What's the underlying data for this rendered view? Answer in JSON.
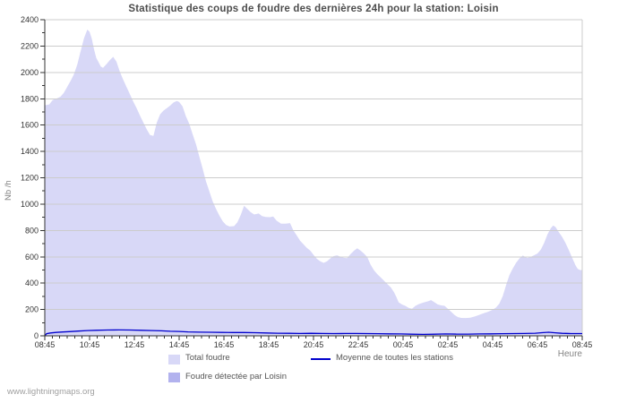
{
  "watermark": "www.lightningmaps.org",
  "colors": {
    "total_fill": "#d8d8f7",
    "loisin_fill": "#b2b2ee",
    "average_line": "#0000cc",
    "grid": "#cccccc",
    "axis": "#333333",
    "title_text": "#4d4d4d",
    "tick_label": "#333333",
    "axis_title_text": "#858585",
    "legend_text": "#555555",
    "watermark_text": "#a0a0a0"
  },
  "chart_data": {
    "type": "area",
    "title": "Statistique des coups de foudre des dernières 24h pour la station: Loisin",
    "xlabel": "Heure",
    "ylabel": "Nb /h",
    "ylim": [
      0,
      2400
    ],
    "y_tick_step": 200,
    "y_minor_step": 100,
    "x_range_hours": [
      0,
      24
    ],
    "x_major_step_hours": 2,
    "x_minor_step_hours": 0.3333,
    "x_tick_labels": [
      "08:45",
      "10:45",
      "12:45",
      "14:45",
      "16:45",
      "18:45",
      "20:45",
      "22:45",
      "00:45",
      "02:45",
      "04:45",
      "06:45",
      "08:45"
    ],
    "grid": "horizontal",
    "legend_position": "bottom",
    "series": [
      {
        "name": "Total foudre",
        "type": "area",
        "color": "#d8d8f7",
        "points": [
          [
            0,
            1750
          ],
          [
            0.2,
            1757
          ],
          [
            0.35,
            1790
          ],
          [
            0.55,
            1803
          ],
          [
            0.7,
            1815
          ],
          [
            0.85,
            1845
          ],
          [
            1.0,
            1890
          ],
          [
            1.15,
            1935
          ],
          [
            1.3,
            1985
          ],
          [
            1.45,
            2060
          ],
          [
            1.6,
            2160
          ],
          [
            1.75,
            2260
          ],
          [
            1.9,
            2325
          ],
          [
            2.0,
            2308
          ],
          [
            2.1,
            2255
          ],
          [
            2.2,
            2175
          ],
          [
            2.3,
            2110
          ],
          [
            2.4,
            2078
          ],
          [
            2.5,
            2045
          ],
          [
            2.6,
            2035
          ],
          [
            2.75,
            2062
          ],
          [
            2.9,
            2093
          ],
          [
            3.05,
            2118
          ],
          [
            3.2,
            2082
          ],
          [
            3.35,
            2005
          ],
          [
            3.5,
            1945
          ],
          [
            3.65,
            1888
          ],
          [
            3.8,
            1835
          ],
          [
            3.95,
            1778
          ],
          [
            4.1,
            1728
          ],
          [
            4.25,
            1672
          ],
          [
            4.4,
            1620
          ],
          [
            4.55,
            1568
          ],
          [
            4.7,
            1525
          ],
          [
            4.85,
            1518
          ],
          [
            5.0,
            1618
          ],
          [
            5.15,
            1682
          ],
          [
            5.3,
            1710
          ],
          [
            5.45,
            1728
          ],
          [
            5.6,
            1748
          ],
          [
            5.75,
            1772
          ],
          [
            5.9,
            1783
          ],
          [
            6.0,
            1775
          ],
          [
            6.15,
            1742
          ],
          [
            6.3,
            1668
          ],
          [
            6.45,
            1610
          ],
          [
            6.6,
            1532
          ],
          [
            6.75,
            1455
          ],
          [
            6.9,
            1362
          ],
          [
            7.05,
            1268
          ],
          [
            7.2,
            1172
          ],
          [
            7.35,
            1095
          ],
          [
            7.5,
            1020
          ],
          [
            7.65,
            962
          ],
          [
            7.8,
            912
          ],
          [
            7.95,
            868
          ],
          [
            8.1,
            842
          ],
          [
            8.25,
            830
          ],
          [
            8.45,
            833
          ],
          [
            8.6,
            862
          ],
          [
            8.75,
            918
          ],
          [
            8.9,
            988
          ],
          [
            9.05,
            962
          ],
          [
            9.2,
            938
          ],
          [
            9.35,
            921
          ],
          [
            9.55,
            929
          ],
          [
            9.7,
            910
          ],
          [
            9.85,
            903
          ],
          [
            10.05,
            901
          ],
          [
            10.2,
            906
          ],
          [
            10.35,
            874
          ],
          [
            10.55,
            851
          ],
          [
            10.75,
            851
          ],
          [
            10.95,
            856
          ],
          [
            11.1,
            801
          ],
          [
            11.25,
            762
          ],
          [
            11.4,
            722
          ],
          [
            11.55,
            695
          ],
          [
            11.7,
            668
          ],
          [
            11.85,
            648
          ],
          [
            12.0,
            615
          ],
          [
            12.15,
            585
          ],
          [
            12.3,
            566
          ],
          [
            12.45,
            554
          ],
          [
            12.6,
            565
          ],
          [
            12.75,
            588
          ],
          [
            12.9,
            605
          ],
          [
            13.05,
            611
          ],
          [
            13.2,
            601
          ],
          [
            13.35,
            592
          ],
          [
            13.5,
            590
          ],
          [
            13.65,
            620
          ],
          [
            13.8,
            645
          ],
          [
            13.95,
            665
          ],
          [
            14.1,
            648
          ],
          [
            14.25,
            625
          ],
          [
            14.4,
            598
          ],
          [
            14.55,
            540
          ],
          [
            14.7,
            498
          ],
          [
            14.85,
            468
          ],
          [
            15.0,
            443
          ],
          [
            15.15,
            418
          ],
          [
            15.3,
            392
          ],
          [
            15.45,
            368
          ],
          [
            15.6,
            330
          ],
          [
            15.7,
            295
          ],
          [
            15.8,
            255
          ],
          [
            15.95,
            238
          ],
          [
            16.1,
            228
          ],
          [
            16.25,
            212
          ],
          [
            16.4,
            206
          ],
          [
            16.55,
            228
          ],
          [
            16.7,
            241
          ],
          [
            16.9,
            252
          ],
          [
            17.1,
            262
          ],
          [
            17.25,
            271
          ],
          [
            17.4,
            255
          ],
          [
            17.55,
            238
          ],
          [
            17.7,
            231
          ],
          [
            17.85,
            228
          ],
          [
            18.0,
            205
          ],
          [
            18.15,
            182
          ],
          [
            18.3,
            158
          ],
          [
            18.45,
            142
          ],
          [
            18.6,
            136
          ],
          [
            18.8,
            135
          ],
          [
            19.0,
            137
          ],
          [
            19.2,
            147
          ],
          [
            19.4,
            159
          ],
          [
            19.6,
            172
          ],
          [
            19.8,
            183
          ],
          [
            20.0,
            198
          ],
          [
            20.15,
            215
          ],
          [
            20.3,
            245
          ],
          [
            20.45,
            302
          ],
          [
            20.6,
            385
          ],
          [
            20.75,
            462
          ],
          [
            20.9,
            512
          ],
          [
            21.05,
            556
          ],
          [
            21.2,
            588
          ],
          [
            21.35,
            610
          ],
          [
            21.45,
            598
          ],
          [
            21.55,
            591
          ],
          [
            21.7,
            599
          ],
          [
            21.85,
            612
          ],
          [
            22.0,
            625
          ],
          [
            22.15,
            655
          ],
          [
            22.3,
            705
          ],
          [
            22.45,
            772
          ],
          [
            22.6,
            818
          ],
          [
            22.7,
            837
          ],
          [
            22.8,
            828
          ],
          [
            22.95,
            788
          ],
          [
            23.1,
            752
          ],
          [
            23.25,
            705
          ],
          [
            23.4,
            652
          ],
          [
            23.55,
            592
          ],
          [
            23.7,
            535
          ],
          [
            23.8,
            508
          ],
          [
            23.9,
            500
          ],
          [
            24.0,
            500
          ]
        ]
      },
      {
        "name": "Foudre détectée par Loisin",
        "type": "area",
        "color": "#b2b2ee",
        "points": [
          [
            0,
            0
          ],
          [
            24,
            0
          ]
        ]
      },
      {
        "name": "Moyenne de toutes les stations",
        "type": "line",
        "color": "#0000cc",
        "points": [
          [
            0,
            0
          ],
          [
            0.08,
            16
          ],
          [
            0.25,
            22
          ],
          [
            0.5,
            26
          ],
          [
            0.8,
            29
          ],
          [
            1.1,
            32
          ],
          [
            1.5,
            36
          ],
          [
            1.9,
            40
          ],
          [
            2.3,
            42
          ],
          [
            2.8,
            44
          ],
          [
            3.3,
            45
          ],
          [
            3.8,
            44
          ],
          [
            4.3,
            42
          ],
          [
            4.8,
            40
          ],
          [
            5.2,
            38
          ],
          [
            5.6,
            35
          ],
          [
            6.0,
            33
          ],
          [
            6.4,
            30
          ],
          [
            6.9,
            28
          ],
          [
            7.4,
            27
          ],
          [
            7.9,
            26
          ],
          [
            8.4,
            25
          ],
          [
            8.9,
            25
          ],
          [
            9.4,
            24
          ],
          [
            9.9,
            22
          ],
          [
            10.4,
            20
          ],
          [
            10.9,
            19
          ],
          [
            11.4,
            18
          ],
          [
            11.9,
            19
          ],
          [
            12.4,
            18
          ],
          [
            12.9,
            17
          ],
          [
            13.4,
            18
          ],
          [
            13.9,
            18
          ],
          [
            14.4,
            17
          ],
          [
            14.9,
            16
          ],
          [
            15.4,
            15
          ],
          [
            15.9,
            14
          ],
          [
            16.4,
            12
          ],
          [
            16.9,
            11
          ],
          [
            17.4,
            12
          ],
          [
            17.9,
            14
          ],
          [
            18.4,
            13
          ],
          [
            18.9,
            13
          ],
          [
            19.4,
            14
          ],
          [
            19.9,
            15
          ],
          [
            20.4,
            16
          ],
          [
            20.9,
            17
          ],
          [
            21.4,
            18
          ],
          [
            21.9,
            20
          ],
          [
            22.2,
            24
          ],
          [
            22.5,
            27
          ],
          [
            22.8,
            23
          ],
          [
            23.1,
            19
          ],
          [
            23.5,
            17
          ],
          [
            24,
            17
          ]
        ]
      }
    ]
  }
}
